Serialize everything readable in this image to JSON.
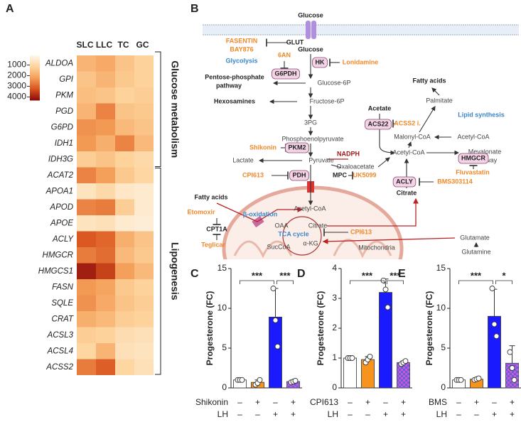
{
  "diagram": {
    "label": "B",
    "labels": [
      "Glucose",
      "Glucose",
      "FASENTIN",
      "BAY876",
      "GLUT",
      "Glycolysis",
      "6AN",
      "G6PDH",
      "HK",
      "Lonidamine",
      "Pentose-phosphate",
      "pathway",
      "Glucose-6P",
      "Hexosamines",
      "Fructose-6P",
      "3PG",
      "Phosphoenolpyruvate",
      "Shikonin",
      "PKM2",
      "Lactate",
      "Pyruvate",
      "NADPH",
      "Oxaloacetate",
      "CPI613",
      "PDH",
      "MPC",
      "UK5099",
      "Acetate",
      "ACSS2 i.",
      "ACS22",
      "Fatty acids",
      "Palmitate",
      "Lipid synthesis",
      "Malonyl-CoA",
      "Acetyl-CoA",
      "Acetyl-CoA",
      "Mevalonate",
      "Pathway",
      "HMGCR",
      "Fluvastatin",
      "ACLY",
      "BMS303114",
      "Citrate",
      "Fatty acids",
      "Etomoxir",
      "CPT1A",
      "Teglicar",
      "β-oxidation",
      "Acetyl-CoA",
      "OAA",
      "Citrate",
      "TCA cycle",
      "SucCoA",
      "α-KG",
      "CPI613",
      "Glutamate",
      "Glutamine",
      "Mitochondria"
    ]
  },
  "chart_data": [
    {
      "type": "heatmap",
      "label": "A",
      "columns": [
        "SLC",
        "LLC",
        "TC",
        "GC"
      ],
      "rows": [
        "ALDOA",
        "GPI",
        "PKM",
        "PGD",
        "G6PD",
        "IDH1",
        "IDH3G",
        "ACAT2",
        "APOA1",
        "APOD",
        "APOE",
        "ACLY",
        "HMGCR",
        "HMGCS1",
        "FASN",
        "SQLE",
        "CRAT",
        "ACSL3",
        "ACSL4",
        "ACSS2"
      ],
      "values": [
        [
          1800,
          2000,
          1500,
          1200
        ],
        [
          1500,
          1800,
          1400,
          1200
        ],
        [
          1600,
          1500,
          1200,
          1300
        ],
        [
          1800,
          2600,
          1500,
          1400
        ],
        [
          2400,
          2300,
          1700,
          1500
        ],
        [
          2300,
          1900,
          2600,
          1700
        ],
        [
          1300,
          1500,
          1200,
          1000
        ],
        [
          2600,
          2200,
          1400,
          1100
        ],
        [
          700,
          1000,
          600,
          500
        ],
        [
          2600,
          2700,
          1300,
          500
        ],
        [
          700,
          800,
          500,
          400
        ],
        [
          3200,
          3000,
          1900,
          1500
        ],
        [
          2700,
          2900,
          1700,
          1400
        ],
        [
          4000,
          3500,
          2200,
          1700
        ],
        [
          2300,
          2100,
          1400,
          1200
        ],
        [
          2400,
          2000,
          1500,
          1300
        ],
        [
          1900,
          1700,
          1300,
          1200
        ],
        [
          1300,
          1200,
          900,
          800
        ],
        [
          1100,
          1800,
          800,
          700
        ],
        [
          2700,
          3100,
          1100,
          800
        ]
      ],
      "clim": [
        100,
        4300
      ],
      "cticks": [
        1000,
        2000,
        3000,
        4000
      ],
      "colors": [
        "#fff7ec",
        "#fdd49e",
        "#f5a05a",
        "#d9541e",
        "#8b0a0a"
      ],
      "groups": [
        "Glucose metabolism",
        "Lipogenesis"
      ]
    },
    {
      "type": "bar",
      "label": "C",
      "ylabel": "Progesterone (FC)",
      "ylim": [
        0,
        15
      ],
      "yticks": [
        0,
        5,
        10,
        15
      ],
      "conditions": [
        {
          "name": "Shikonin",
          "signs": [
            "–",
            "+",
            "–",
            "+"
          ]
        },
        {
          "name": "LH",
          "signs": [
            "–",
            "–",
            "+",
            "+"
          ]
        }
      ],
      "values": [
        1,
        0.7,
        8.9,
        0.8
      ],
      "errors": [
        0.1,
        0.3,
        3.6,
        0.15
      ],
      "points": [
        [
          1,
          1,
          1
        ],
        [
          0.4,
          0.6,
          1.0
        ],
        [
          12.5,
          8.5,
          5.2
        ],
        [
          0.7,
          0.8,
          0.9
        ]
      ],
      "colors": [
        "#ffffff",
        "#f7941d",
        "#1a1aff",
        "#c45ccf"
      ],
      "patterned": [
        false,
        false,
        false,
        true
      ],
      "significance": [
        "***",
        "***"
      ]
    },
    {
      "type": "bar",
      "label": "D",
      "ylabel": "Progesterone (FC)",
      "ylim": [
        0,
        4
      ],
      "yticks": [
        0,
        1,
        2,
        3,
        4
      ],
      "conditions": [
        {
          "name": "CPI613",
          "signs": [
            "–",
            "+",
            "–",
            "+"
          ]
        },
        {
          "name": "LH",
          "signs": [
            "–",
            "–",
            "+",
            "+"
          ]
        }
      ],
      "values": [
        1,
        0.95,
        3.2,
        0.85
      ],
      "errors": [
        0.05,
        0.1,
        0.45,
        0.05
      ],
      "points": [
        [
          1,
          1,
          1
        ],
        [
          0.85,
          0.95,
          1.05
        ],
        [
          3.6,
          3.3,
          2.7
        ],
        [
          0.8,
          0.85,
          0.9
        ]
      ],
      "colors": [
        "#ffffff",
        "#f7941d",
        "#1a1aff",
        "#c45ccf"
      ],
      "patterned": [
        false,
        false,
        false,
        true
      ],
      "significance": [
        "***",
        "***"
      ]
    },
    {
      "type": "bar",
      "label": "E",
      "ylabel": "Progesterone (FC)",
      "ylim": [
        0,
        15
      ],
      "yticks": [
        0,
        5,
        10,
        15
      ],
      "conditions": [
        {
          "name": "BMS",
          "signs": [
            "–",
            "+",
            "–",
            "+"
          ]
        },
        {
          "name": "LH",
          "signs": [
            "–",
            "–",
            "+",
            "+"
          ]
        }
      ],
      "values": [
        1,
        1.1,
        9,
        3.1
      ],
      "errors": [
        0.1,
        0.1,
        3.4,
        2.2
      ],
      "points": [
        [
          1,
          1,
          1
        ],
        [
          1,
          1.1,
          1.2
        ],
        [
          12.5,
          8,
          6.5
        ],
        [
          4.5,
          2.5,
          1
        ]
      ],
      "colors": [
        "#ffffff",
        "#f7941d",
        "#1a1aff",
        "#c45ccf"
      ],
      "patterned": [
        false,
        false,
        false,
        true
      ],
      "significance": [
        "***",
        "*"
      ]
    }
  ]
}
